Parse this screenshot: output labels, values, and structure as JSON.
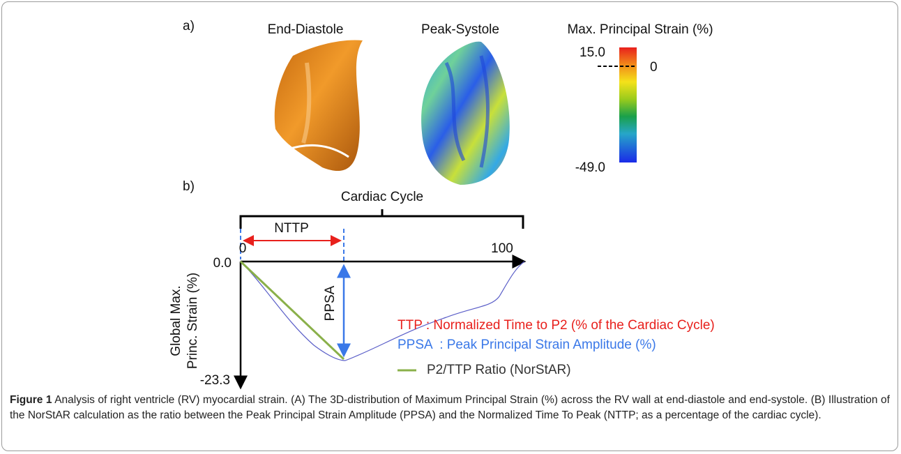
{
  "panel_a": {
    "label": "a)",
    "end_diastole": "End-Diastole",
    "peak_systole": "Peak-Systole",
    "colorbar": {
      "title": "Max. Principal Strain (%)",
      "max": "15.0",
      "zero": "0",
      "min": "-49.0"
    }
  },
  "panel_b": {
    "label": "b)",
    "bracket": "Cardiac Cycle",
    "nttp": "NTTP",
    "x_start": "0",
    "x_end": "100",
    "y_top": "0.0",
    "y_bottom": "-23.3",
    "y_label": [
      "Global Max.",
      "Princ. Strain (%)"
    ],
    "ppsa": "PPSA",
    "legend": [
      "TTP : Normalized Time to P2 (% of the Cardiac Cycle)",
      "PPSA  : Peak Principal Strain Amplitude (%)",
      "P2/TTP Ratio (NorStAR)"
    ]
  },
  "caption": {
    "label": "Figure 1",
    "text": " Analysis of right ventricle (RV) myocardial strain. (A) The 3D-distribution of Maximum Principal Strain (%) across the RV wall at end-diastole and end-systole. (B) Illustration of the NorStAR calculation as the ratio between the Peak Principal Strain Amplitude (PPSA) and the Normalized Time To Peak (NTTP; as a percentage of the cardiac cycle)."
  }
}
